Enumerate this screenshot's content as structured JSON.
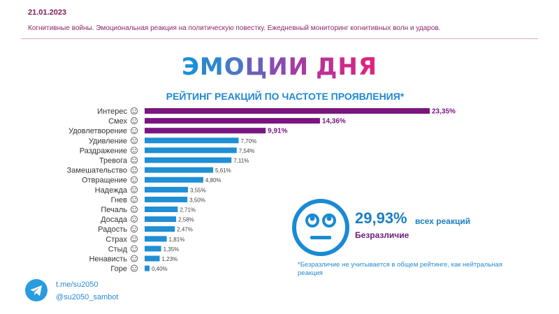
{
  "header": {
    "date": "21.01.2023",
    "subtitle": "Когнитивные войны. Эмоциональная реакция на политическую повестку. Ежедневный мониторинг когнитивных волн и ударов."
  },
  "title": {
    "text": "ЭМОЦИИ ДНЯ",
    "colors": [
      "#1d90d8",
      "#2e86cf",
      "#4a78c6",
      "#6b5fba",
      "#8a4bb0",
      "#a53ca3",
      "#bb3296",
      "#ce2a88",
      "#dd247e",
      "#e6217a"
    ]
  },
  "chart_data": {
    "type": "bar",
    "orientation": "horizontal",
    "title": "РЕЙТИНГ РЕАКЦИЙ ПО ЧАСТОТЕ ПРОЯВЛЕНИЯ*",
    "categories": [
      "Интерес",
      "Смех",
      "Удовлетворение",
      "Удивление",
      "Раздражение",
      "Тревога",
      "Замешательство",
      "Отвращение",
      "Надежда",
      "Гнев",
      "Печаль",
      "Досада",
      "Радость",
      "Страх",
      "Стыд",
      "Ненависть",
      "Горе"
    ],
    "values": [
      23.35,
      14.36,
      9.91,
      7.7,
      7.54,
      7.11,
      5.61,
      4.8,
      3.55,
      3.5,
      2.71,
      2.58,
      2.47,
      1.81,
      1.35,
      1.23,
      0.4
    ],
    "value_labels": [
      "23,35%",
      "14,36%",
      "9,91%",
      "7,70%",
      "7,54%",
      "7,11%",
      "5,61%",
      "4,80%",
      "3,55%",
      "3,50%",
      "2,71%",
      "2,58%",
      "2,47%",
      "1,81%",
      "1,35%",
      "1,23%",
      "0,40%"
    ],
    "highlighted_top": 3,
    "colors": {
      "top": "#7b1580",
      "rest": "#1f8fd6"
    },
    "icons": [
      "interest-face-icon",
      "laughing-face-icon",
      "satisfied-face-icon",
      "surprised-face-icon",
      "irritated-face-icon",
      "anxious-face-icon",
      "confused-face-icon",
      "disgusted-face-icon",
      "hope-praying-hands-icon",
      "angry-face-icon",
      "sad-face-icon",
      "annoyed-face-icon",
      "happy-face-icon",
      "fearful-face-icon",
      "ashamed-face-icon",
      "hateful-face-icon",
      "grieving-face-icon"
    ],
    "ylim": [
      0,
      23.35
    ]
  },
  "indifference": {
    "percent": "29,93%",
    "suffix": "всех реакций",
    "label": "Безразличие",
    "icon": "indifferent-face-icon",
    "color": "#1a7fc1"
  },
  "footnote": "*Безразличие не учитывается в общем рейтинге, как нейтральная реакция",
  "footer": {
    "channel": "t.me/su2050",
    "bot": "@su2050_sambot",
    "icon": "telegram-icon"
  }
}
